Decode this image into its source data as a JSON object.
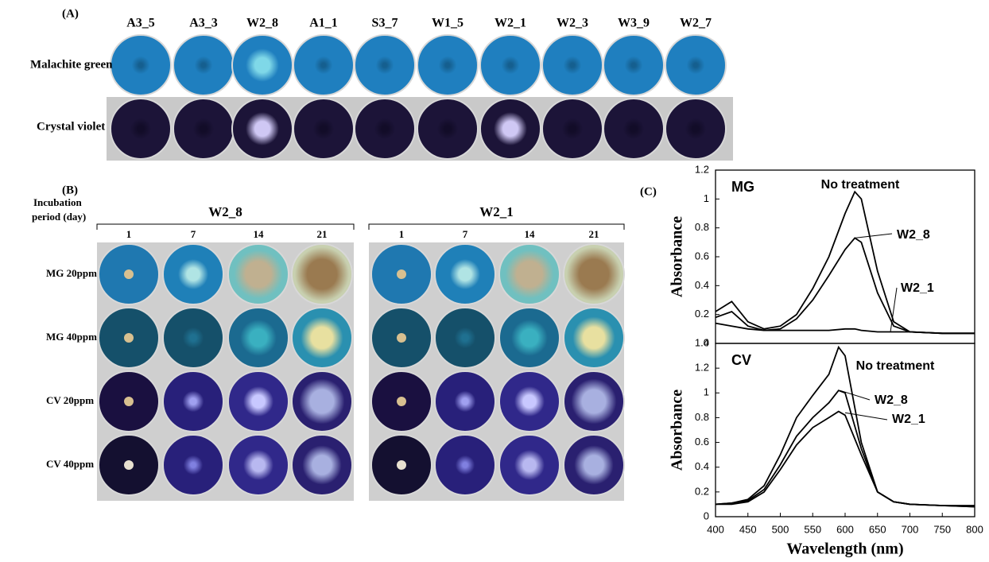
{
  "panel_a": {
    "label": "(A)",
    "columns": [
      "A3_5",
      "A3_3",
      "W2_8",
      "A1_1",
      "S3_7",
      "W1_5",
      "W2_1",
      "W2_3",
      "W3_9",
      "W2_7"
    ],
    "rows": [
      "Malachite green",
      "Crystal violet"
    ]
  },
  "panel_b": {
    "label": "(B)",
    "period_label": [
      "Incubation",
      "period (day)"
    ],
    "groups": [
      "W2_8",
      "W2_1"
    ],
    "days": [
      "1",
      "7",
      "14",
      "21"
    ],
    "rows": [
      "MG 20ppm",
      "MG 40ppm",
      "CV 20ppm",
      "CV 40ppm"
    ]
  },
  "panel_c_label": "(C)",
  "chart_data": [
    {
      "type": "line",
      "title": "MG",
      "ylabel": "Absorbance",
      "x": [
        400,
        425,
        450,
        475,
        500,
        525,
        550,
        575,
        600,
        615,
        625,
        650,
        675,
        700,
        750,
        800
      ],
      "xlim": [
        400,
        800
      ],
      "ylim": [
        0,
        1.2
      ],
      "yticks": [
        0,
        0.2,
        0.4,
        0.6,
        0.8,
        1,
        1.2
      ],
      "series": [
        {
          "name": "No treatment",
          "color": "#000000",
          "values": [
            0.22,
            0.29,
            0.15,
            0.1,
            0.12,
            0.2,
            0.38,
            0.6,
            0.9,
            1.05,
            1.0,
            0.5,
            0.15,
            0.08,
            0.07,
            0.07
          ]
        },
        {
          "name": "W2_8",
          "color": "#000000",
          "values": [
            0.18,
            0.22,
            0.12,
            0.09,
            0.1,
            0.17,
            0.3,
            0.47,
            0.65,
            0.73,
            0.7,
            0.35,
            0.12,
            0.08,
            0.07,
            0.07
          ]
        },
        {
          "name": "W2_1",
          "color": "#000000",
          "values": [
            0.14,
            0.12,
            0.1,
            0.09,
            0.09,
            0.09,
            0.09,
            0.09,
            0.1,
            0.1,
            0.09,
            0.08,
            0.08,
            0.08,
            0.07,
            0.07
          ]
        }
      ]
    },
    {
      "type": "line",
      "title": "CV",
      "ylabel": "Absorbance",
      "xlabel": "Wavelength (nm)",
      "x": [
        400,
        425,
        450,
        475,
        500,
        525,
        550,
        575,
        590,
        600,
        625,
        650,
        675,
        700,
        750,
        800
      ],
      "xlim": [
        400,
        800
      ],
      "xticks": [
        400,
        450,
        500,
        550,
        600,
        650,
        700,
        750,
        800
      ],
      "ylim": [
        0,
        1.4
      ],
      "yticks": [
        0,
        0.2,
        0.4,
        0.6,
        0.8,
        1,
        1.2,
        1.4
      ],
      "series": [
        {
          "name": "No treatment",
          "color": "#000000",
          "values": [
            0.1,
            0.11,
            0.14,
            0.25,
            0.5,
            0.8,
            0.98,
            1.15,
            1.37,
            1.3,
            0.6,
            0.2,
            0.12,
            0.1,
            0.09,
            0.08
          ]
        },
        {
          "name": "W2_8",
          "color": "#000000",
          "values": [
            0.1,
            0.11,
            0.13,
            0.22,
            0.42,
            0.65,
            0.8,
            0.92,
            1.02,
            1.0,
            0.55,
            0.2,
            0.12,
            0.1,
            0.09,
            0.09
          ]
        },
        {
          "name": "W2_1",
          "color": "#000000",
          "values": [
            0.1,
            0.1,
            0.12,
            0.2,
            0.38,
            0.58,
            0.72,
            0.8,
            0.85,
            0.82,
            0.5,
            0.2,
            0.12,
            0.1,
            0.09,
            0.08
          ]
        }
      ]
    }
  ]
}
